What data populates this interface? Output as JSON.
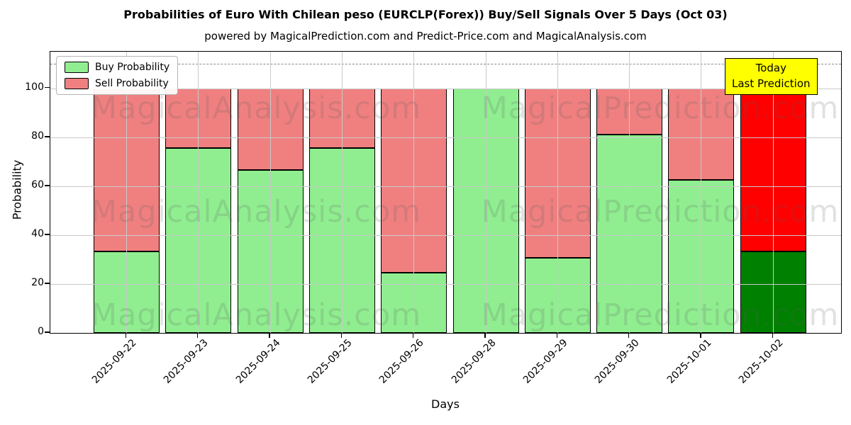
{
  "subtitle": "powered by MagicalPrediction.com and Predict-Price.com and MagicalAnalysis.com",
  "annotation": {
    "line1": "Today",
    "line2": "Last Prediction",
    "bg_color": "#ffff00"
  },
  "watermarks": {
    "left": "MagicalAnalysis.com",
    "right": "MagicalPrediction.com"
  },
  "colors": {
    "buy": "#90ee90",
    "sell": "#f08080",
    "buy_today": "#008000",
    "sell_today": "#ff0000",
    "grid": "#c9c9c9",
    "dashed_line": "#8a8a8a",
    "annotation_bg": "#ffff00"
  },
  "chart_data": {
    "type": "bar",
    "stacked": true,
    "title": "Probabilities of Euro With Chilean peso (EURCLP(Forex)) Buy/Sell Signals Over 5 Days (Oct 03)",
    "xlabel": "Days",
    "ylabel": "Probability",
    "categories": [
      "2025-09-22",
      "2025-09-23",
      "2025-09-24",
      "2025-09-25",
      "2025-09-26",
      "2025-09-28",
      "2025-09-29",
      "2025-09-30",
      "2025-10-01",
      "2025-10-02"
    ],
    "series": [
      {
        "name": "Buy Probability",
        "color": "#90ee90",
        "today_color": "#008000",
        "values": [
          33.3,
          75.5,
          66.7,
          75.5,
          24.5,
          100,
          30.8,
          81,
          62.5,
          33.3
        ]
      },
      {
        "name": "Sell Probability",
        "color": "#f08080",
        "today_color": "#ff0000",
        "values": [
          66.7,
          24.5,
          33.3,
          24.5,
          75.5,
          0,
          69.2,
          19,
          37.5,
          66.7
        ]
      }
    ],
    "today_index": 9,
    "ylim": [
      0,
      115
    ],
    "yticks": [
      0,
      20,
      40,
      60,
      80,
      100
    ],
    "dashed_line_y": 110,
    "grid": true,
    "legend_position": "upper left"
  }
}
